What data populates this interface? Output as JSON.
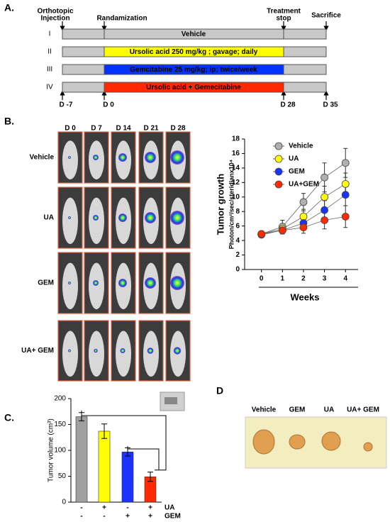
{
  "panel_labels": [
    "A.",
    "B.",
    "C.",
    "D"
  ],
  "timeline": {
    "events": [
      {
        "lines": [
          "Orthotopic",
          "Injection"
        ]
      },
      {
        "lines": [
          "Randamization"
        ]
      },
      {
        "lines": [
          "Treatment",
          "stop"
        ]
      },
      {
        "lines": [
          "Sacrifice"
        ]
      }
    ],
    "rows": [
      {
        "roman": "I",
        "text": "Vehicle",
        "color": "#c8c8c8"
      },
      {
        "roman": "II",
        "text": "Ursolic acid 250 mg/kg ; gavage; daily",
        "color": "#ffff00"
      },
      {
        "roman": "III",
        "text": "Gemcitabine 25 mg/kg; ip; twice/week",
        "color": "#0033ff"
      },
      {
        "roman": "IV",
        "text": "Ursolic acid + Gemecitabine",
        "color": "#ff2a00"
      }
    ],
    "days": [
      "D -7",
      "D 0",
      "D 28",
      "D 35"
    ]
  },
  "images": {
    "columns": [
      "D 0",
      "D 7",
      "D 14",
      "D 21",
      "D 28"
    ],
    "rows": [
      "Vehicle",
      "UA",
      "GEM",
      "UA+ GEM"
    ]
  },
  "photo": {
    "labels": [
      "Vehicle",
      "GEM",
      "UA",
      "UA+ GEM"
    ]
  },
  "chart_data": [
    {
      "type": "line",
      "ylabel": [
        "Tumor growth",
        "Photon/cm²/sec/steridianx10⁴"
      ],
      "xlabel": "Weeks",
      "x": [
        0,
        1,
        2,
        3,
        4
      ],
      "xlim": [
        -0.8,
        4.6
      ],
      "xticks": [
        0,
        1,
        2,
        3,
        4
      ],
      "ylim": [
        0,
        18
      ],
      "yticks": [
        0,
        2,
        4,
        6,
        8,
        10,
        12,
        14,
        16,
        18
      ],
      "legend": "upper left",
      "series": [
        {
          "name": "Vehicle",
          "color": "#b0b0b0",
          "values": [
            4.9,
            5.9,
            9.3,
            12.7,
            14.7
          ],
          "errors": [
            0.3,
            0.9,
            1.2,
            2.0,
            2.0
          ]
        },
        {
          "name": "UA",
          "color": "#ffff00",
          "values": [
            4.9,
            5.6,
            7.3,
            10.0,
            11.8
          ],
          "errors": [
            0.3,
            0.7,
            1.0,
            1.5,
            1.5
          ]
        },
        {
          "name": "GEM",
          "color": "#1a33ff",
          "values": [
            4.8,
            5.4,
            6.4,
            8.2,
            10.3
          ],
          "errors": [
            0.3,
            0.5,
            0.8,
            1.3,
            1.5
          ]
        },
        {
          "name": "UA+GEM",
          "color": "#ff2a00",
          "values": [
            4.9,
            5.4,
            5.8,
            6.8,
            7.3
          ],
          "errors": [
            0.3,
            0.4,
            0.8,
            1.2,
            1.5
          ]
        }
      ]
    },
    {
      "type": "bar",
      "ylabel": "Tumor volume (cm³)",
      "values": [
        165,
        137,
        97,
        49
      ],
      "errors": [
        8,
        14,
        8,
        9
      ],
      "colors": [
        "#a0a0a0",
        "#ffff00",
        "#1a33ff",
        "#ff2a00"
      ],
      "ylim": [
        0,
        200
      ],
      "yticks": [
        0,
        50,
        100,
        150,
        200
      ],
      "sign_rows": [
        {
          "label": "UA",
          "signs": [
            "-",
            "+",
            "-",
            "+"
          ]
        },
        {
          "label": "GEM",
          "signs": [
            "-",
            "-",
            "+",
            "+"
          ]
        }
      ]
    }
  ]
}
